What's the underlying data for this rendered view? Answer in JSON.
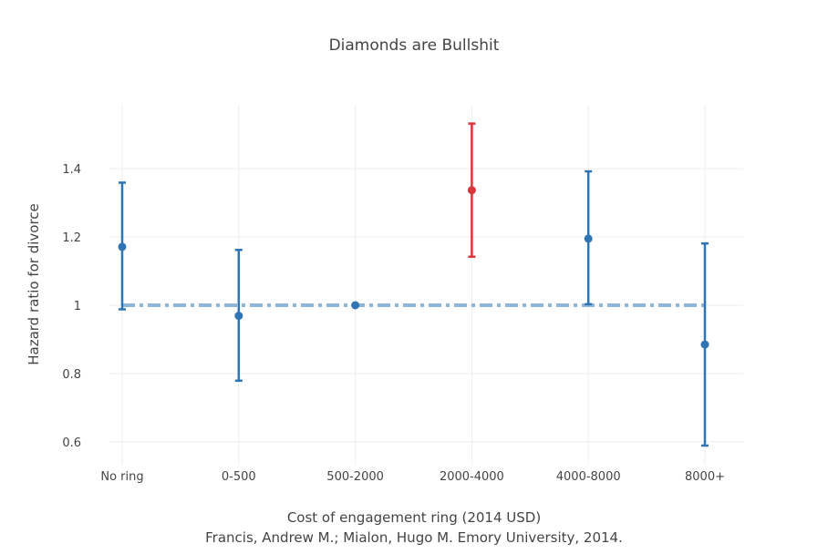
{
  "chart_data": {
    "type": "scatter",
    "title": "Diamonds are Bullshit",
    "xlabel": "Cost of engagement ring (2014 USD)",
    "caption": "Francis, Andrew M.; Mialon, Hugo M. Emory University, 2014.",
    "ylabel": "Hazard ratio for divorce",
    "categories": [
      "No ring",
      "0-500",
      "500-2000",
      "2000-4000",
      "4000-8000",
      "8000+"
    ],
    "values": [
      1.171,
      0.969,
      1.0,
      1.337,
      1.195,
      0.885
    ],
    "upper": [
      1.359,
      1.162,
      1.0,
      1.532,
      1.392,
      1.181
    ],
    "lower": [
      0.988,
      0.779,
      1.0,
      1.142,
      1.003,
      0.589
    ],
    "highlight_index": 3,
    "reference_line": 1,
    "ylim": [
      0.533,
      1.587
    ],
    "yticks": [
      0.6,
      0.8,
      1,
      1.2,
      1.4
    ],
    "ytick_labels": [
      "0.6",
      "0.8",
      "1",
      "1.2",
      "1.4"
    ],
    "grid": true,
    "colors": {
      "point": "#2f75b5",
      "highlight": "#d9363a",
      "reference": "#8fb6d8",
      "grid": "#eeeeee"
    }
  }
}
